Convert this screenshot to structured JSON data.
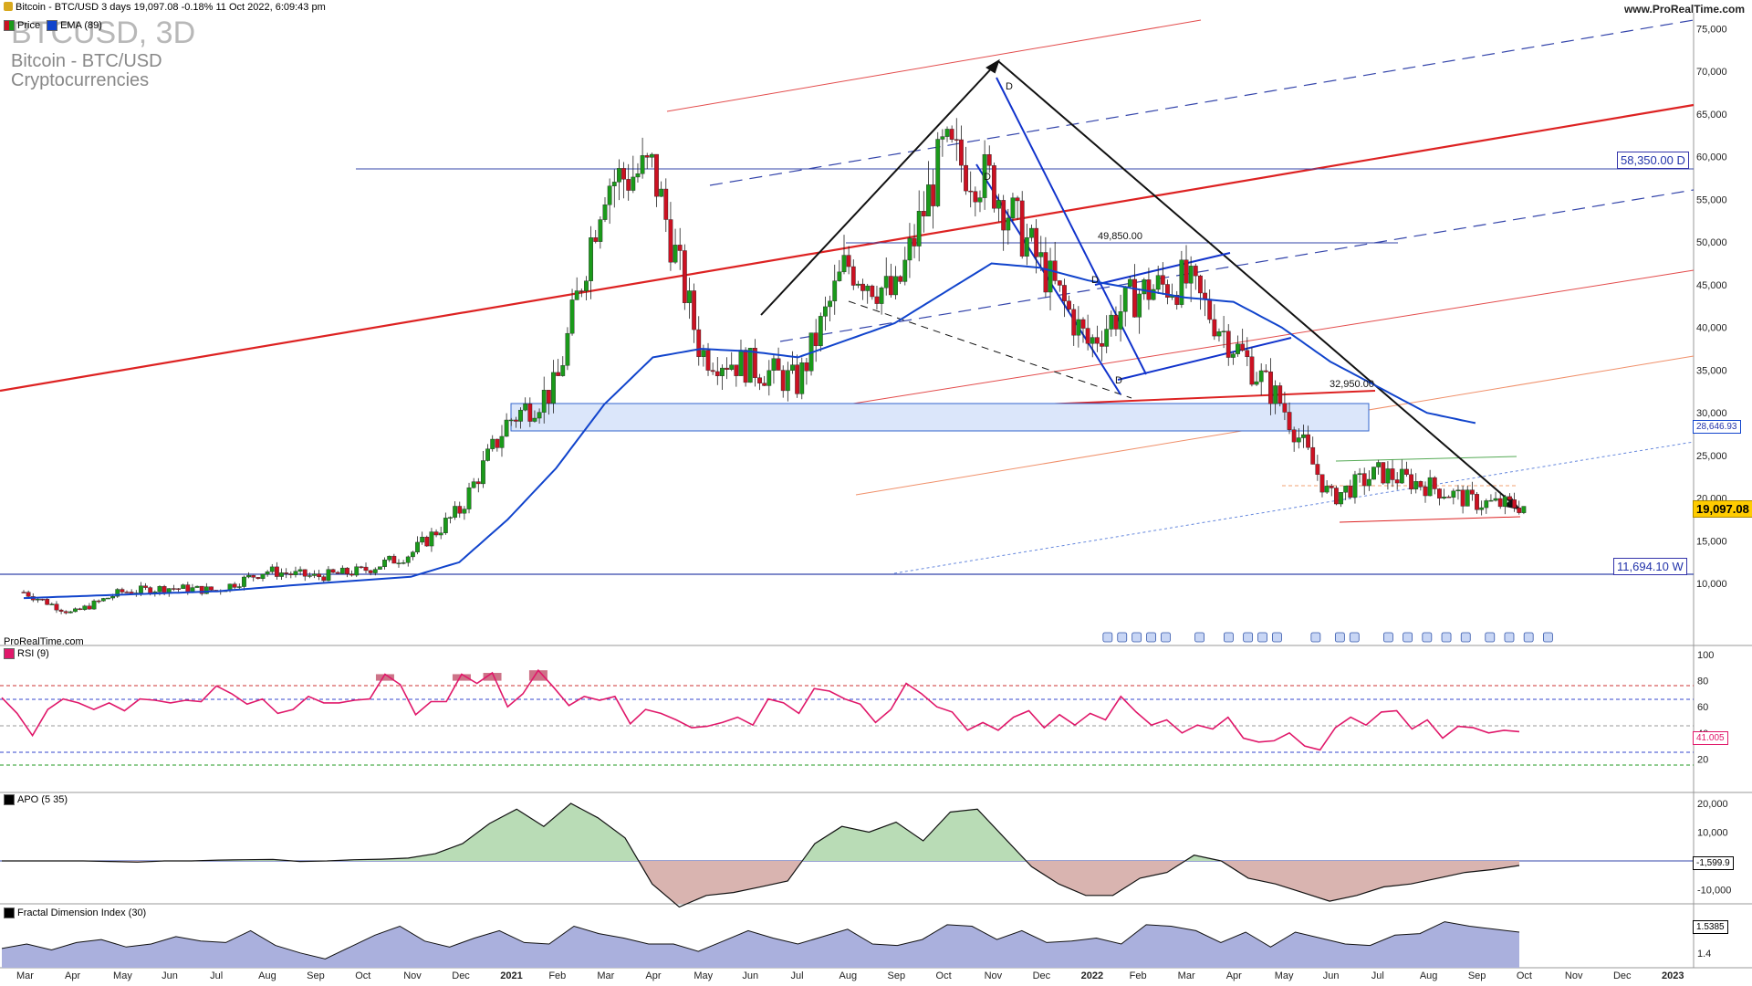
{
  "header": {
    "title": "Bitcoin - BTC/USD 3 days 19,097.08 -0.18% 11 Oct 2022, 6:09:43 pm",
    "brand": "www.ProRealTime.com",
    "symbol": "BTCUSD, 3D",
    "name": "Bitcoin - BTC/USD",
    "category": "Cryptocurrencies",
    "watermark": "ProRealTime.com",
    "legend_price": "Price",
    "legend_ema": "EMA (89)"
  },
  "colors": {
    "up": "#1a9a1a",
    "down": "#cc1122",
    "ema": "#1144cc",
    "rsi": "#e0186a",
    "apo_pos": "#b9dcb6",
    "apo_neg": "#d9b4b0",
    "fdi": "#aab0dd",
    "red_channel": "#dd2222",
    "blue_channel": "#3344aa"
  },
  "chart_data": [
    {
      "type": "candlestick",
      "title": "Bitcoin - BTC/USD",
      "series_name": "Price",
      "overlay": {
        "name": "EMA (89)"
      },
      "x": [
        "Mar",
        "Apr",
        "May",
        "Jun",
        "Jul",
        "Aug",
        "Sep",
        "Oct",
        "Nov",
        "Dec",
        "2021",
        "Feb",
        "Mar",
        "Apr",
        "May",
        "Jun",
        "Jul",
        "Aug",
        "Sep",
        "Oct",
        "Nov",
        "Dec",
        "2022",
        "Feb",
        "Mar",
        "Apr",
        "May",
        "Jun",
        "Jul",
        "Aug",
        "Sep",
        "Oct",
        "Nov",
        "Dec",
        "2023"
      ],
      "yticks": [
        "75,000",
        "70,000",
        "65,000",
        "60,000",
        "55,000",
        "50,000",
        "45,000",
        "40,000",
        "35,000",
        "30,000",
        "25,000",
        "20,000",
        "15,000",
        "10,000"
      ],
      "ylim": [
        5000,
        76000
      ],
      "close_path": [
        [
          0,
          9000
        ],
        [
          1,
          6500
        ],
        [
          2,
          9000
        ],
        [
          3,
          9500
        ],
        [
          4,
          9200
        ],
        [
          5,
          11500
        ],
        [
          6,
          10800
        ],
        [
          7,
          11500
        ],
        [
          8,
          13500
        ],
        [
          9,
          18500
        ],
        [
          10,
          29000
        ],
        [
          11,
          33000
        ],
        [
          12,
          57000
        ],
        [
          13,
          58500
        ],
        [
          14,
          37000
        ],
        [
          15,
          35500
        ],
        [
          16,
          33500
        ],
        [
          17,
          47500
        ],
        [
          18,
          43500
        ],
        [
          19,
          60500
        ],
        [
          20,
          57000
        ],
        [
          21,
          47500
        ],
        [
          22,
          38000
        ],
        [
          23,
          44000
        ],
        [
          24,
          45500
        ],
        [
          25,
          38000
        ],
        [
          26,
          31000
        ],
        [
          27,
          20000
        ],
        [
          28,
          23000
        ],
        [
          29,
          21500
        ],
        [
          30,
          19500
        ],
        [
          31,
          19097
        ]
      ],
      "ema_path": [
        [
          0,
          8300
        ],
        [
          2,
          8700
        ],
        [
          4,
          9100
        ],
        [
          6,
          10000
        ],
        [
          8,
          10800
        ],
        [
          9,
          12500
        ],
        [
          10,
          17500
        ],
        [
          11,
          23500
        ],
        [
          12,
          31000
        ],
        [
          13,
          36500
        ],
        [
          14,
          37500
        ],
        [
          15,
          37200
        ],
        [
          16,
          36500
        ],
        [
          17,
          38500
        ],
        [
          18,
          40500
        ],
        [
          19,
          44000
        ],
        [
          20,
          47500
        ],
        [
          21,
          47000
        ],
        [
          22,
          45500
        ],
        [
          23,
          44500
        ],
        [
          24,
          43500
        ],
        [
          25,
          43000
        ],
        [
          26,
          40000
        ],
        [
          27,
          36000
        ],
        [
          28,
          33000
        ],
        [
          29,
          30000
        ],
        [
          30,
          28800
        ]
      ],
      "annotations": {
        "resistance_top": "58,350.00 D",
        "level_mid": "49,850.00",
        "level_low": "32,950.00",
        "ema_value": "28,646.93",
        "last_price": "19,097.08",
        "support_weekly": "11,694.10 W",
        "pattern_labels": [
          "D",
          "D",
          "D",
          "D"
        ]
      }
    },
    {
      "type": "line",
      "title": "RSI (9)",
      "yticks": [
        "100",
        "80",
        "60",
        "40",
        "20"
      ],
      "ylim": [
        0,
        100
      ],
      "levels": [
        80,
        70,
        50,
        30,
        20
      ],
      "last_value": "41.005",
      "values": [
        67,
        55,
        38,
        58,
        66,
        63,
        58,
        63,
        57,
        66,
        65,
        63,
        65,
        64,
        76,
        70,
        62,
        66,
        55,
        58,
        68,
        63,
        63,
        65,
        66,
        85,
        77,
        54,
        64,
        64,
        85,
        78,
        86,
        60,
        70,
        88,
        75,
        61,
        68,
        65,
        68,
        47,
        58,
        55,
        50,
        44,
        45,
        48,
        52,
        46,
        66,
        63,
        55,
        74,
        72,
        66,
        62,
        48,
        58,
        78,
        70,
        60,
        56,
        42,
        48,
        42,
        52,
        57,
        44,
        54,
        46,
        55,
        50,
        68,
        56,
        46,
        50,
        40,
        46,
        43,
        52,
        36,
        33,
        34,
        40,
        30,
        27,
        44,
        52,
        46,
        56,
        57,
        43,
        50,
        36,
        45,
        44,
        40,
        42,
        41
      ]
    },
    {
      "type": "area",
      "title": "APO (5 35)",
      "yticks": [
        "20,000",
        "10,000",
        "0",
        "-10,000"
      ],
      "ylim": [
        -16000,
        24000
      ],
      "last_value": "-1,599.9",
      "values": [
        0,
        0,
        0,
        0,
        -200,
        -400,
        0,
        0,
        300,
        400,
        500,
        -200,
        0,
        400,
        600,
        1000,
        2500,
        6000,
        13000,
        18000,
        12000,
        20000,
        15000,
        8000,
        -8000,
        -16000,
        -12000,
        -11000,
        -9000,
        -7000,
        6000,
        12000,
        10000,
        13500,
        7000,
        17000,
        18000,
        8000,
        -2000,
        -8000,
        -12000,
        -12000,
        -6000,
        -4000,
        2000,
        0,
        -6000,
        -8000,
        -11000,
        -14000,
        -12000,
        -9000,
        -8000,
        -6000,
        -4000,
        -3000,
        -1600
      ]
    },
    {
      "type": "area",
      "title": "Fractal Dimension Index (30)",
      "yticks": [
        "1.6",
        "1.4"
      ],
      "ylim": [
        1.3,
        1.7
      ],
      "last_value": "1.5385",
      "values": [
        1.43,
        1.46,
        1.42,
        1.47,
        1.49,
        1.44,
        1.46,
        1.51,
        1.48,
        1.47,
        1.55,
        1.45,
        1.4,
        1.36,
        1.44,
        1.52,
        1.58,
        1.48,
        1.44,
        1.5,
        1.55,
        1.47,
        1.46,
        1.58,
        1.53,
        1.5,
        1.46,
        1.46,
        1.41,
        1.48,
        1.55,
        1.5,
        1.46,
        1.51,
        1.56,
        1.46,
        1.45,
        1.49,
        1.59,
        1.58,
        1.49,
        1.55,
        1.47,
        1.48,
        1.5,
        1.46,
        1.59,
        1.58,
        1.55,
        1.47,
        1.54,
        1.44,
        1.54,
        1.5,
        1.46,
        1.45,
        1.52,
        1.53,
        1.61,
        1.58,
        1.56,
        1.54
      ]
    }
  ]
}
